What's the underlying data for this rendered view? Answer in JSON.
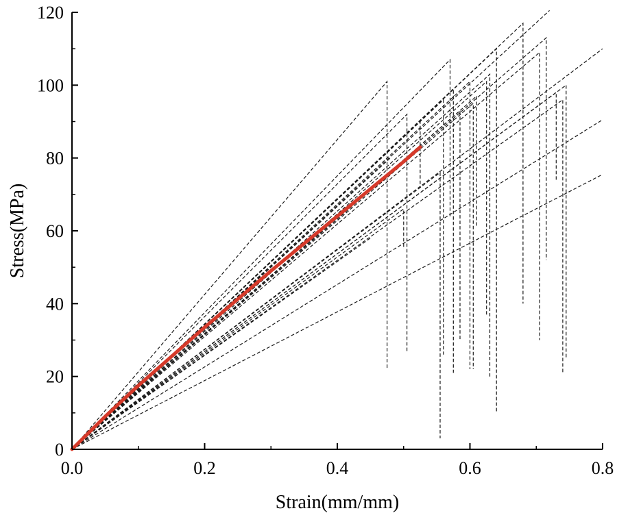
{
  "chart_data": {
    "type": "line",
    "title": "",
    "xlabel": "Strain(mm/mm)",
    "ylabel": "Stress(MPa)",
    "xlim": [
      0,
      0.8
    ],
    "ylim": [
      0,
      120
    ],
    "x_ticks": [
      0.0,
      0.2,
      0.4,
      0.6,
      0.8
    ],
    "x_tick_labels": [
      "0.0",
      "0.2",
      "0.4",
      "0.6",
      "0.8"
    ],
    "y_ticks": [
      0,
      20,
      40,
      60,
      80,
      100,
      120
    ],
    "y_tick_labels": [
      "0",
      "20",
      "40",
      "60",
      "80",
      "100",
      "120"
    ],
    "grid": false,
    "legend": "none",
    "colors": {
      "highlight": "#d63a2a",
      "specimen": "#1a1a1a",
      "axis": "#000000"
    },
    "highlight_series": {
      "style": "solid",
      "points": [
        [
          0.0,
          0.0
        ],
        [
          0.05,
          9.0
        ],
        [
          0.1,
          17.5
        ],
        [
          0.2,
          33.5
        ],
        [
          0.3,
          49.0
        ],
        [
          0.4,
          64.0
        ],
        [
          0.5,
          79.0
        ],
        [
          0.525,
          83.0
        ]
      ]
    },
    "specimen_series_style": "dashed",
    "specimen_series": [
      {
        "points": [
          [
            0,
            0
          ],
          [
            0.475,
            101.0
          ],
          [
            0.475,
            22.0
          ]
        ]
      },
      {
        "points": [
          [
            0,
            0
          ],
          [
            0.505,
            92.0
          ],
          [
            0.505,
            27.0
          ]
        ]
      },
      {
        "points": [
          [
            0,
            0
          ],
          [
            0.525,
            90.0
          ],
          [
            0.525,
            72.0
          ]
        ]
      },
      {
        "points": [
          [
            0,
            0
          ],
          [
            0.56,
            96.0
          ],
          [
            0.56,
            26.0
          ]
        ]
      },
      {
        "points": [
          [
            0,
            0
          ],
          [
            0.57,
            107.0
          ],
          [
            0.57,
            64.0
          ]
        ]
      },
      {
        "points": [
          [
            0,
            0
          ],
          [
            0.575,
            99.0
          ],
          [
            0.575,
            21.0
          ]
        ]
      },
      {
        "points": [
          [
            0,
            0
          ],
          [
            0.585,
            93.0
          ],
          [
            0.585,
            30.0
          ]
        ]
      },
      {
        "points": [
          [
            0,
            0
          ],
          [
            0.555,
            76.0
          ],
          [
            0.555,
            3.0
          ]
        ]
      },
      {
        "points": [
          [
            0,
            0
          ],
          [
            0.6,
            101.0
          ],
          [
            0.6,
            22.0
          ]
        ]
      },
      {
        "points": [
          [
            0,
            0
          ],
          [
            0.605,
            95.0
          ],
          [
            0.605,
            22.0
          ]
        ]
      },
      {
        "points": [
          [
            0,
            0
          ],
          [
            0.61,
            97.0
          ],
          [
            0.61,
            61.0
          ]
        ]
      },
      {
        "points": [
          [
            0,
            0
          ],
          [
            0.625,
            101.0
          ],
          [
            0.625,
            37.0
          ]
        ]
      },
      {
        "points": [
          [
            0,
            0
          ],
          [
            0.63,
            103.0
          ],
          [
            0.63,
            20.0
          ]
        ]
      },
      {
        "points": [
          [
            0,
            0
          ],
          [
            0.64,
            110.0
          ],
          [
            0.64,
            10.0
          ]
        ]
      },
      {
        "points": [
          [
            0,
            0
          ],
          [
            0.68,
            117.0
          ],
          [
            0.68,
            40.0
          ]
        ]
      },
      {
        "points": [
          [
            0,
            0
          ],
          [
            0.705,
            109.0
          ],
          [
            0.705,
            30.0
          ]
        ]
      },
      {
        "points": [
          [
            0,
            0
          ],
          [
            0.715,
            113.0
          ],
          [
            0.715,
            52.0
          ]
        ]
      },
      {
        "points": [
          [
            0,
            0
          ],
          [
            0.72,
            120.5
          ]
        ]
      },
      {
        "points": [
          [
            0,
            0
          ],
          [
            0.74,
            96.0
          ],
          [
            0.74,
            21.0
          ]
        ]
      },
      {
        "points": [
          [
            0,
            0
          ],
          [
            0.745,
            100.0
          ],
          [
            0.745,
            25.0
          ]
        ]
      },
      {
        "points": [
          [
            0,
            0
          ],
          [
            0.73,
            98.0
          ],
          [
            0.73,
            74.0
          ]
        ]
      },
      {
        "points": [
          [
            0,
            0
          ],
          [
            0.48,
            80.0
          ]
        ]
      },
      {
        "points": [
          [
            0,
            0
          ],
          [
            0.8,
            110.0
          ]
        ]
      },
      {
        "points": [
          [
            0,
            0
          ],
          [
            0.8,
            90.5
          ]
        ]
      },
      {
        "points": [
          [
            0,
            0
          ],
          [
            0.8,
            75.5
          ]
        ]
      },
      {
        "points": [
          [
            0,
            0
          ],
          [
            0.5,
            66.0
          ],
          [
            0.5,
            55.0
          ]
        ]
      },
      {
        "points": [
          [
            0,
            0
          ],
          [
            0.45,
            58.0
          ]
        ]
      }
    ]
  }
}
